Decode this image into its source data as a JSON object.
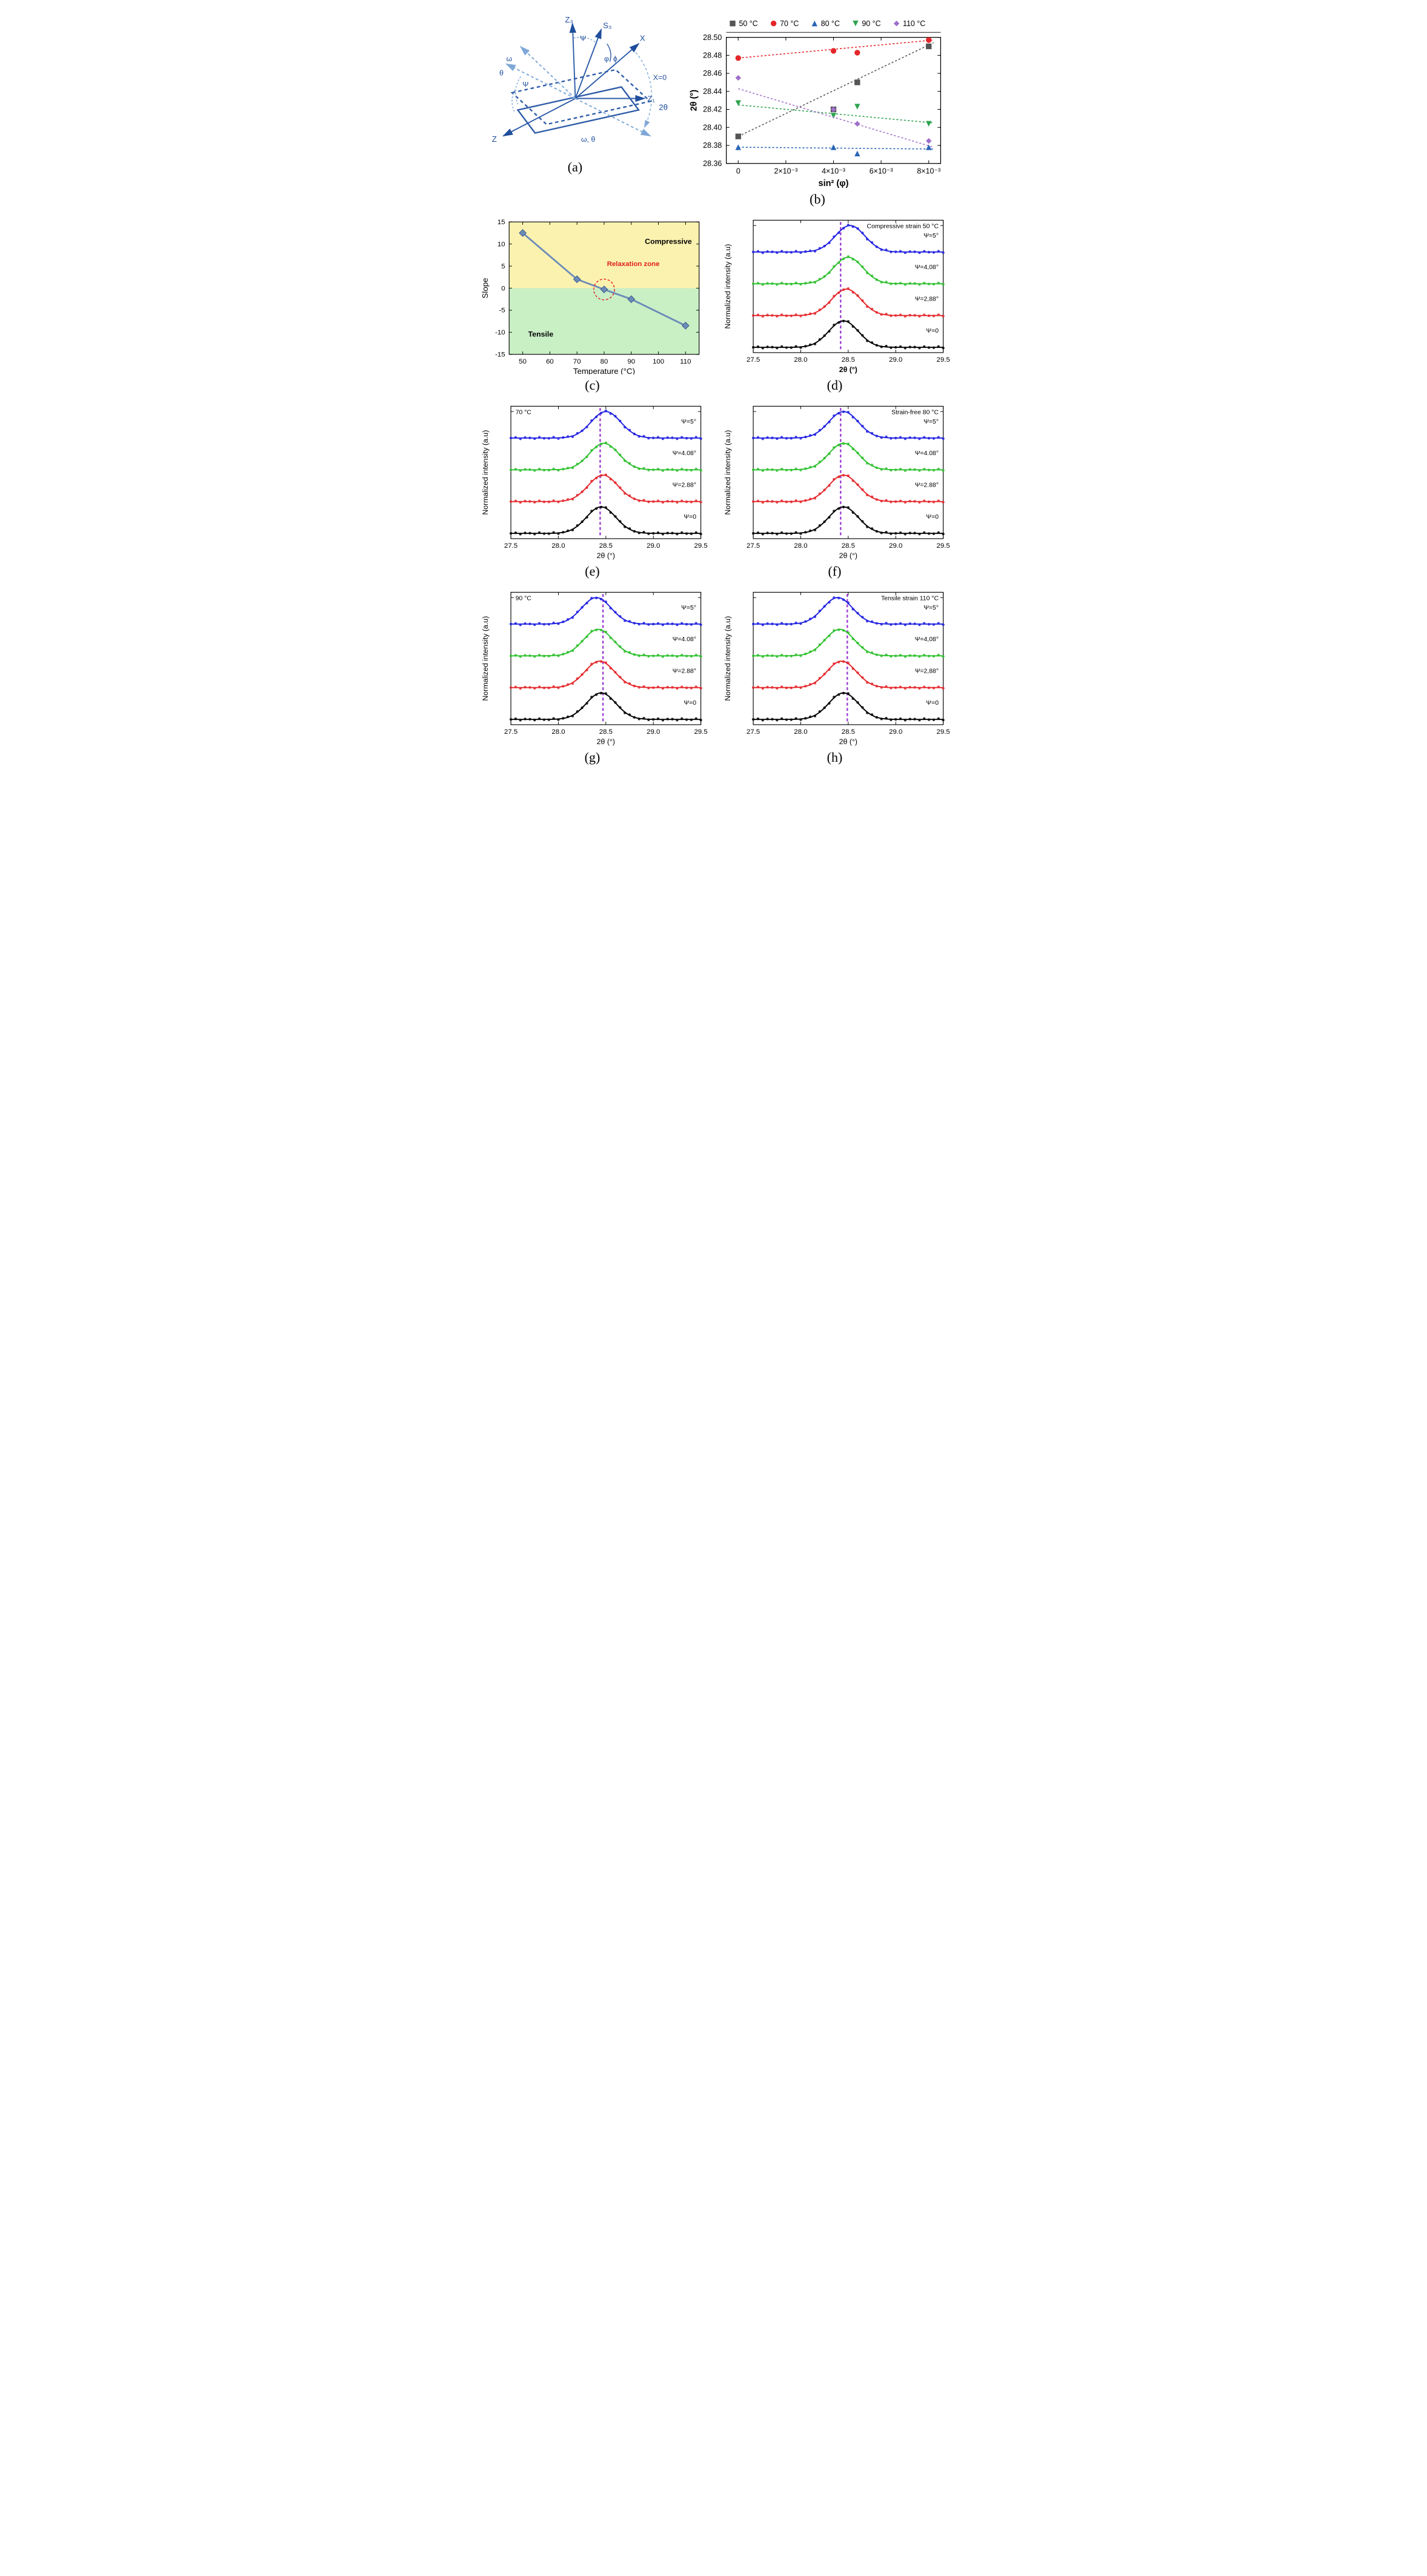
{
  "labels": {
    "a": "(a)",
    "b": "(b)",
    "c": "(c)",
    "d": "(d)",
    "e": "(e)",
    "f": "(f)",
    "g": "(g)",
    "h": "(h)"
  },
  "panel_a": {
    "labels": [
      "Z₃",
      "S₃",
      "X",
      "Z₁",
      "Z",
      "X=0",
      "2θ",
      "ω, θ",
      "θ",
      "ω",
      "Ψ",
      "Ψ",
      "φ, ϕ"
    ],
    "line_color": "#2e5ca8",
    "light_color": "#7fa8d8",
    "arrow_color": "#1f4e9c",
    "text_color": "#1f4e9c",
    "fontsize": 14
  },
  "panel_b": {
    "type": "scatter",
    "xlabel": "sin² (φ)",
    "ylabel": "2θ (°)",
    "xlim": [
      -0.0005,
      0.0085
    ],
    "ylim": [
      28.36,
      28.5
    ],
    "xticks": [
      0,
      0.002,
      0.004,
      0.006,
      0.008
    ],
    "xtick_labels": [
      "0",
      "2×10⁻³",
      "4×10⁻³",
      "6×10⁻³",
      "8×10⁻³"
    ],
    "yticks": [
      28.36,
      28.38,
      28.4,
      28.42,
      28.44,
      28.46,
      28.48,
      28.5
    ],
    "ytick_labels": [
      "28.36",
      "28.38",
      "28.40",
      "28.42",
      "28.44",
      "28.46",
      "28.48",
      "28.50"
    ],
    "legend": [
      {
        "label": "50 °C",
        "marker": "square",
        "color": "#555555"
      },
      {
        "label": "70 °C",
        "marker": "circle",
        "color": "#e4262a"
      },
      {
        "label": "80 °C",
        "marker": "triangle-up",
        "color": "#2764b6"
      },
      {
        "label": "90 °C",
        "marker": "triangle-down",
        "color": "#2da44e"
      },
      {
        "label": "110 °C",
        "marker": "diamond",
        "color": "#9f6ecb"
      }
    ],
    "series": [
      {
        "marker": "square",
        "color": "#555555",
        "x": [
          0,
          0.004,
          0.005,
          0.008
        ],
        "y": [
          28.39,
          28.42,
          28.45,
          28.49
        ],
        "fit": [
          [
            0,
            28.39
          ],
          [
            0.0082,
            28.494
          ]
        ]
      },
      {
        "marker": "circle",
        "color": "#e4262a",
        "x": [
          0,
          0.004,
          0.005,
          0.008
        ],
        "y": [
          28.477,
          28.485,
          28.483,
          28.497
        ],
        "fit": [
          [
            0,
            28.477
          ],
          [
            0.0082,
            28.497
          ]
        ]
      },
      {
        "marker": "triangle-up",
        "color": "#2764b6",
        "x": [
          0,
          0.004,
          0.005,
          0.008
        ],
        "y": [
          28.378,
          28.378,
          28.371,
          28.378
        ],
        "fit": [
          [
            0,
            28.378
          ],
          [
            0.0082,
            28.376
          ]
        ]
      },
      {
        "marker": "triangle-down",
        "color": "#2da44e",
        "x": [
          0,
          0.004,
          0.005,
          0.008
        ],
        "y": [
          28.427,
          28.413,
          28.423,
          28.404
        ],
        "fit": [
          [
            0,
            28.425
          ],
          [
            0.0082,
            28.405
          ]
        ]
      },
      {
        "marker": "diamond",
        "color": "#9f6ecb",
        "x": [
          0,
          0.004,
          0.005,
          0.008
        ],
        "y": [
          28.455,
          28.42,
          28.404,
          28.385
        ],
        "fit": [
          [
            0,
            28.443
          ],
          [
            0.0082,
            28.378
          ]
        ]
      }
    ],
    "axis_fontsize": 14,
    "tick_fontsize": 12,
    "legend_fontsize": 12
  },
  "panel_c": {
    "type": "line",
    "xlabel": "Temperature (°C)",
    "ylabel": "Slope",
    "xlim": [
      45,
      115
    ],
    "ylim": [
      -15,
      15
    ],
    "xticks": [
      50,
      60,
      70,
      80,
      90,
      100,
      110
    ],
    "yticks": [
      -15,
      -10,
      -5,
      0,
      5,
      10,
      15
    ],
    "x": [
      50,
      70,
      80,
      90,
      110
    ],
    "y": [
      12.5,
      2.0,
      -0.3,
      -2.5,
      -8.5
    ],
    "line_color": "#6b8cb8",
    "marker_color": "#6b8cb8",
    "marker_size": 6,
    "line_width": 3,
    "bg_top": "#fcf2b0",
    "bg_bottom": "#c9efc5",
    "text_compressive": "Compressive",
    "text_tensile": "Tensile",
    "text_relaxation": "Relaxation zone",
    "relaxation_color": "#e02020",
    "axis_fontsize": 14,
    "tick_fontsize": 12
  },
  "xrd_common": {
    "type": "line",
    "xlabel_d": "2θ (°)",
    "xlabel_rest": "2θ (°)",
    "ylabel_d": "Normalized intensity (a.u)",
    "ylabel_rest": "Normalized intensity (a.u)",
    "xlim": [
      27.5,
      29.5
    ],
    "xticks": [
      27.5,
      28.0,
      28.5,
      29.0,
      29.5
    ],
    "xtick_labels": [
      "27.5",
      "28.0",
      "28.5",
      "29.0",
      "29.5"
    ],
    "vline_x": 28.45,
    "vline_color": "#9b3dcf",
    "vline_width": 2.5,
    "curves": [
      {
        "color": "#000000",
        "label": "Ψ=0",
        "offset": 0
      },
      {
        "color": "#e4262a",
        "label": "Ψ=2.88°",
        "offset": 1.2
      },
      {
        "color": "#2dc02d",
        "label": "Ψ=4.08°",
        "offset": 2.4
      },
      {
        "color": "#2020e0",
        "label": "Ψ=5°",
        "offset": 3.6
      }
    ],
    "label_fontsize_small": 11,
    "axis_fontsize": 13,
    "tick_fontsize": 12
  },
  "panel_d": {
    "annotation": "Compressive strain  50 °C",
    "center_shift": [
      0,
      0.03,
      0.05,
      0.07
    ],
    "labels_alt": [
      "Ψ=0",
      "Ψ=2,88°",
      "Ψ=4,08°",
      "Ψ=5°"
    ],
    "vline_x": 28.42
  },
  "panel_e": {
    "annotation": "70 °C",
    "center_shift": [
      0,
      0.02,
      0.03,
      0.05
    ],
    "labels_alt": [
      "Ψ=0",
      "Ψ=2.88°",
      "Ψ=4.08°",
      "Ψ=5°"
    ],
    "vline_x": 28.44
  },
  "panel_f": {
    "annotation": "Strain-free 80 °C",
    "center_shift": [
      0,
      0,
      0,
      0
    ],
    "labels_alt": [
      "Ψ=0",
      "Ψ=2.88°",
      "Ψ=4.08°",
      "Ψ=5°"
    ],
    "vline_x": 28.42
  },
  "panel_g": {
    "annotation": "90 °C",
    "center_shift": [
      0,
      -0.015,
      -0.03,
      -0.05
    ],
    "labels_alt": [
      "Ψ=0",
      "Ψ=2.88°",
      "Ψ=4.08°",
      "Ψ=5°"
    ],
    "vline_x": 28.47
  },
  "panel_h": {
    "annotation": "Tensile strain 110 °C",
    "center_shift": [
      0,
      -0.02,
      -0.04,
      -0.06
    ],
    "labels_alt": [
      "Ψ=0",
      "Ψ=2,88°",
      "Ψ=4,08°",
      "Ψ=5°"
    ],
    "vline_x": 28.49
  }
}
